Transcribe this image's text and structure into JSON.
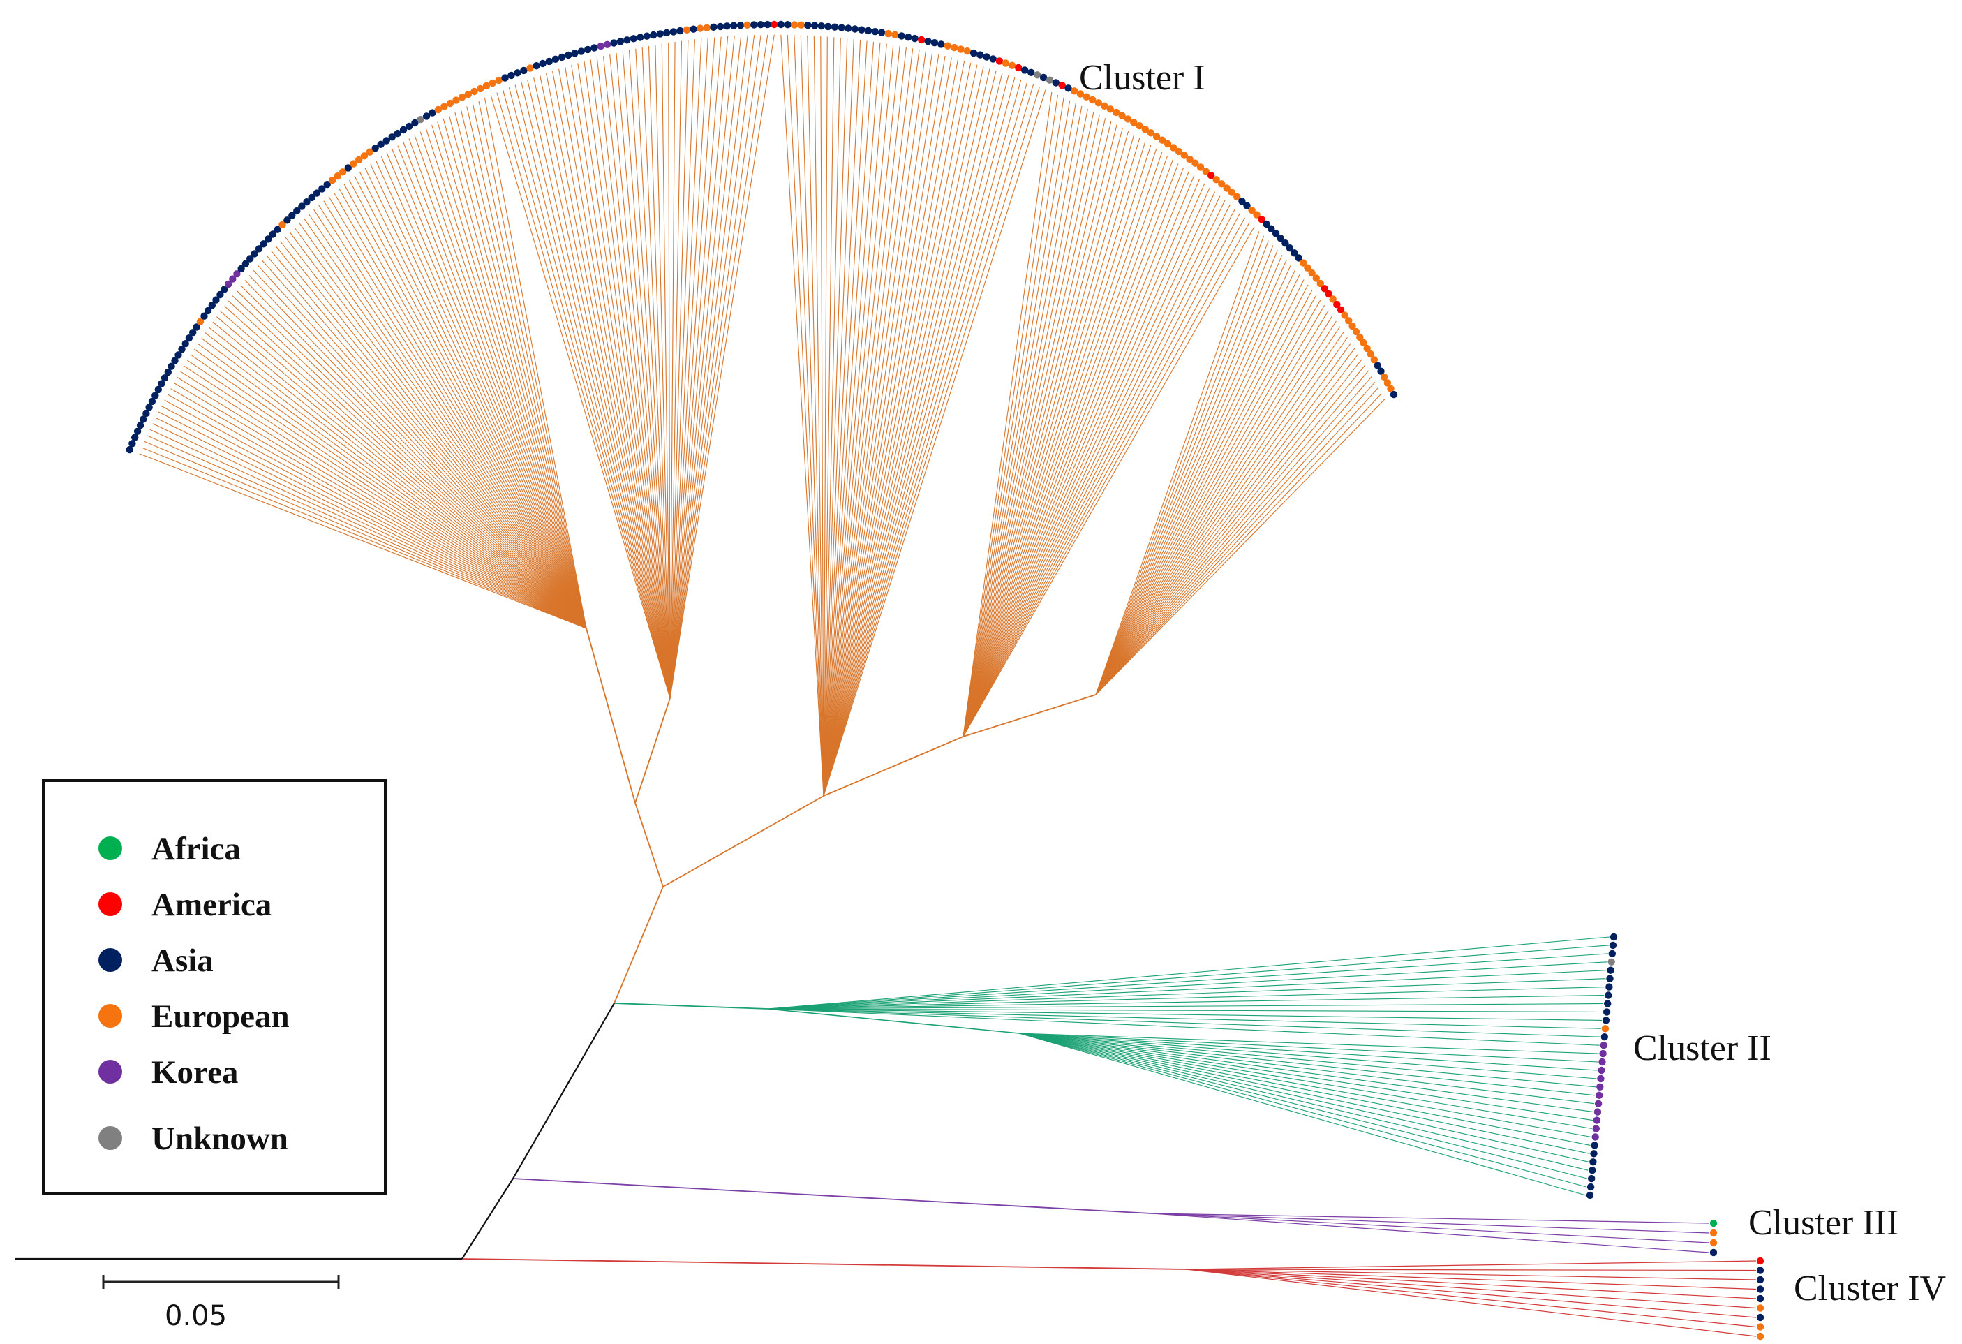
{
  "clusters": {
    "c1": "Cluster I",
    "c2": "Cluster II",
    "c3": "Cluster III",
    "c4": "Cluster IV"
  },
  "legend": {
    "items": [
      {
        "label": "Africa",
        "color": "#00b050"
      },
      {
        "label": "America",
        "color": "#ff0000"
      },
      {
        "label": "Asia",
        "color": "#002060"
      },
      {
        "label": "European",
        "color": "#f5740f"
      },
      {
        "label": "Korea",
        "color": "#7030a0"
      },
      {
        "label": "Unknown",
        "color": "#808080"
      }
    ]
  },
  "scale_bar": {
    "label": "0.05"
  },
  "branch_colors": {
    "cluster1": "#d8752a",
    "cluster2": "#1aa173",
    "cluster3": "#7c3fa6",
    "cluster4": "#d23a3a",
    "backbone": "#111111"
  },
  "tips": {
    "cluster1": "AAAAAAAAAAAAAAAAAAAAAAEAAAAAAKKKAAAAAAAAAEAAAAAAAAAEEEAEEEEAAAAAAAAUAAEEEEEEEEEEEAAAAEAAAAAAAAAAKKAAAAAAAAAAAEAEEAAAAAEAAARAAEEAAAAAAAAAAAAEEAAARAAAEEEEAAAAREERAAUAUARAEEEEEEEEEEEEEEEEEEEEEEEEREEEEEAAEERAAAAAAAAEEEEERRERREEEEEEEEEAAEEEA",
    "cluster2": "AAAUAAAAAAAEAKKKKKKKKKKKKAAAAAAA",
    "cluster3": "FEEA",
    "cluster4": "RAAAAEAEE"
  }
}
